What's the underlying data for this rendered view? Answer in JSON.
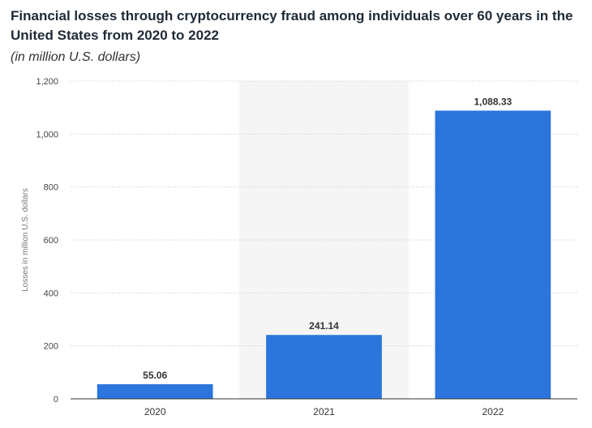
{
  "chart_data": {
    "type": "bar",
    "title": "Financial losses through cryptocurrency fraud among individuals over 60 years in the United States from 2020 to 2022",
    "subtitle": "(in million U.S. dollars)",
    "xlabel": "",
    "ylabel": "Losses in million U.S. dollars",
    "categories": [
      "2020",
      "2021",
      "2022"
    ],
    "values": [
      55.06,
      241.14,
      1088.33
    ],
    "data_labels": [
      "55.06",
      "241.14",
      "1,088.33"
    ],
    "ylim": [
      0,
      1200
    ],
    "yticks": [
      0,
      200,
      400,
      600,
      800,
      1000,
      1200
    ],
    "ytick_labels": [
      "0",
      "200",
      "400",
      "600",
      "800",
      "1,000",
      "1,200"
    ],
    "grid": true,
    "highlighted_category": "2021",
    "bar_color": "#2b75dc",
    "highlight_band_color": "#f5f5f5",
    "grid_color": "#c8c8c8"
  }
}
